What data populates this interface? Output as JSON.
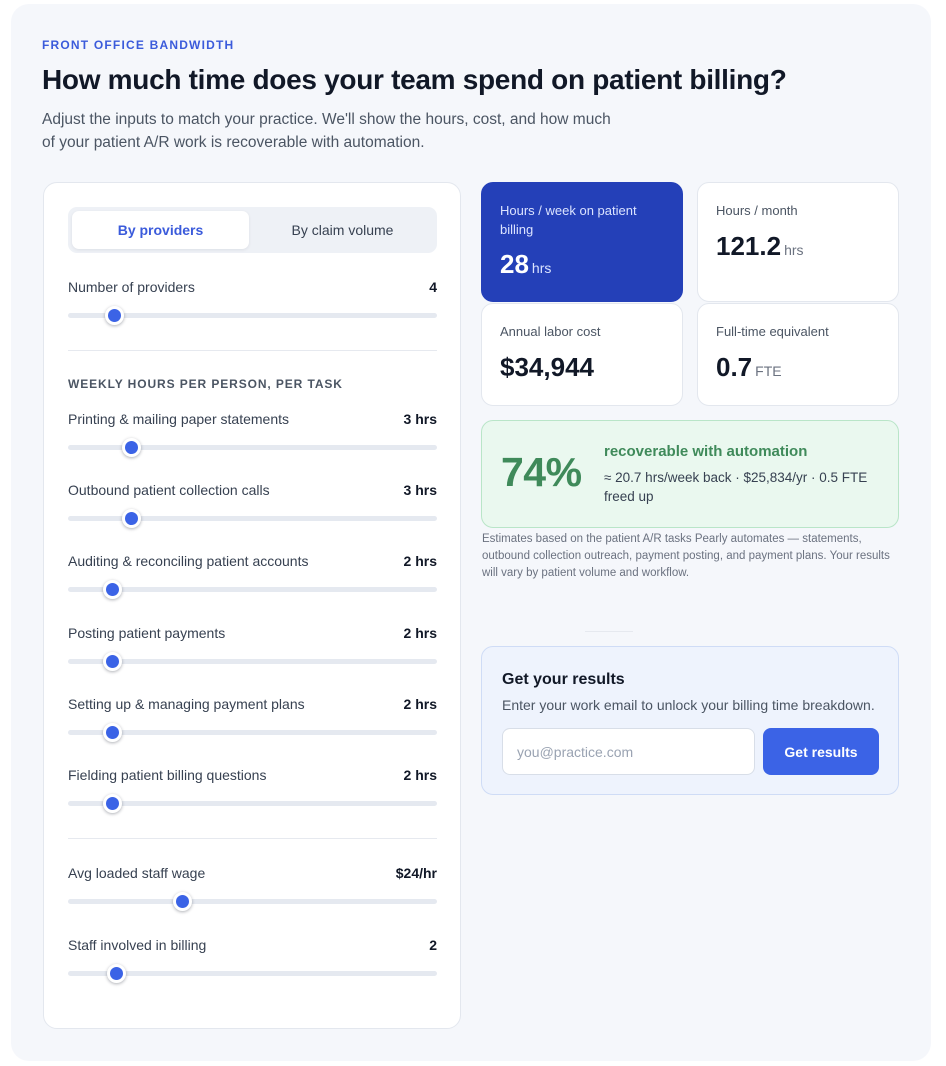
{
  "header": {
    "eyebrow": "FRONT OFFICE BANDWIDTH",
    "title": "How much time does your team spend on patient billing?",
    "subtitle": "Adjust the inputs to match your practice. We'll show the hours, cost, and how much of your patient A/R work is recoverable with automation."
  },
  "mode_tabs": [
    {
      "label": "By providers",
      "active": true
    },
    {
      "label": "By claim volume",
      "active": false
    }
  ],
  "providers": {
    "label": "Number of providers",
    "value": "4",
    "level": 0.125
  },
  "tasks_heading": "WEEKLY HOURS PER PERSON, PER TASK",
  "tasks": [
    {
      "label": "Printing & mailing paper statements",
      "value": "3 hrs",
      "level": 0.17
    },
    {
      "label": "Outbound patient collection calls",
      "value": "3 hrs",
      "level": 0.17
    },
    {
      "label": "Auditing & reconciling patient accounts",
      "value": "2 hrs",
      "level": 0.12
    },
    {
      "label": "Posting patient payments",
      "value": "2 hrs",
      "level": 0.12
    },
    {
      "label": "Setting up & managing payment plans",
      "value": "2 hrs",
      "level": 0.12
    },
    {
      "label": "Fielding patient billing questions",
      "value": "2 hrs",
      "level": 0.12
    }
  ],
  "wage": {
    "label": "Avg loaded staff wage",
    "value": "$24/hr",
    "level": 0.31
  },
  "staff": {
    "label": "Staff involved in billing",
    "value": "2",
    "level": 0.13
  },
  "stats": {
    "hours_week": {
      "label": "Hours / week on patient billing",
      "value": "28",
      "unit": "hrs"
    },
    "hours_month": {
      "label": "Hours / month",
      "value": "121.2",
      "unit": "hrs"
    },
    "labor_cost": {
      "label": "Annual labor cost",
      "value": "$34,944"
    },
    "fte": {
      "label": "Full-time equivalent",
      "value": "0.7",
      "unit": "FTE"
    }
  },
  "recoverable": {
    "percent": "74%",
    "heading": "recoverable with automation",
    "detail": "≈ 20.7 hrs/week back · $25,834/yr · 0.5 FTE freed up"
  },
  "footnote": "Estimates based on the patient A/R tasks Pearly automates — statements, outbound collection outreach, payment posting, and payment plans. Your results will vary by patient volume and workflow.",
  "results": {
    "title": "Get your results",
    "subtitle": "Enter your work email to unlock your billing time breakdown.",
    "email_placeholder": "you@practice.com",
    "email_value": "",
    "button_label": "Get results"
  },
  "colors": {
    "accent": "#3b63e6",
    "primary_card": "#2440b8",
    "success": "#3f8a5a"
  }
}
